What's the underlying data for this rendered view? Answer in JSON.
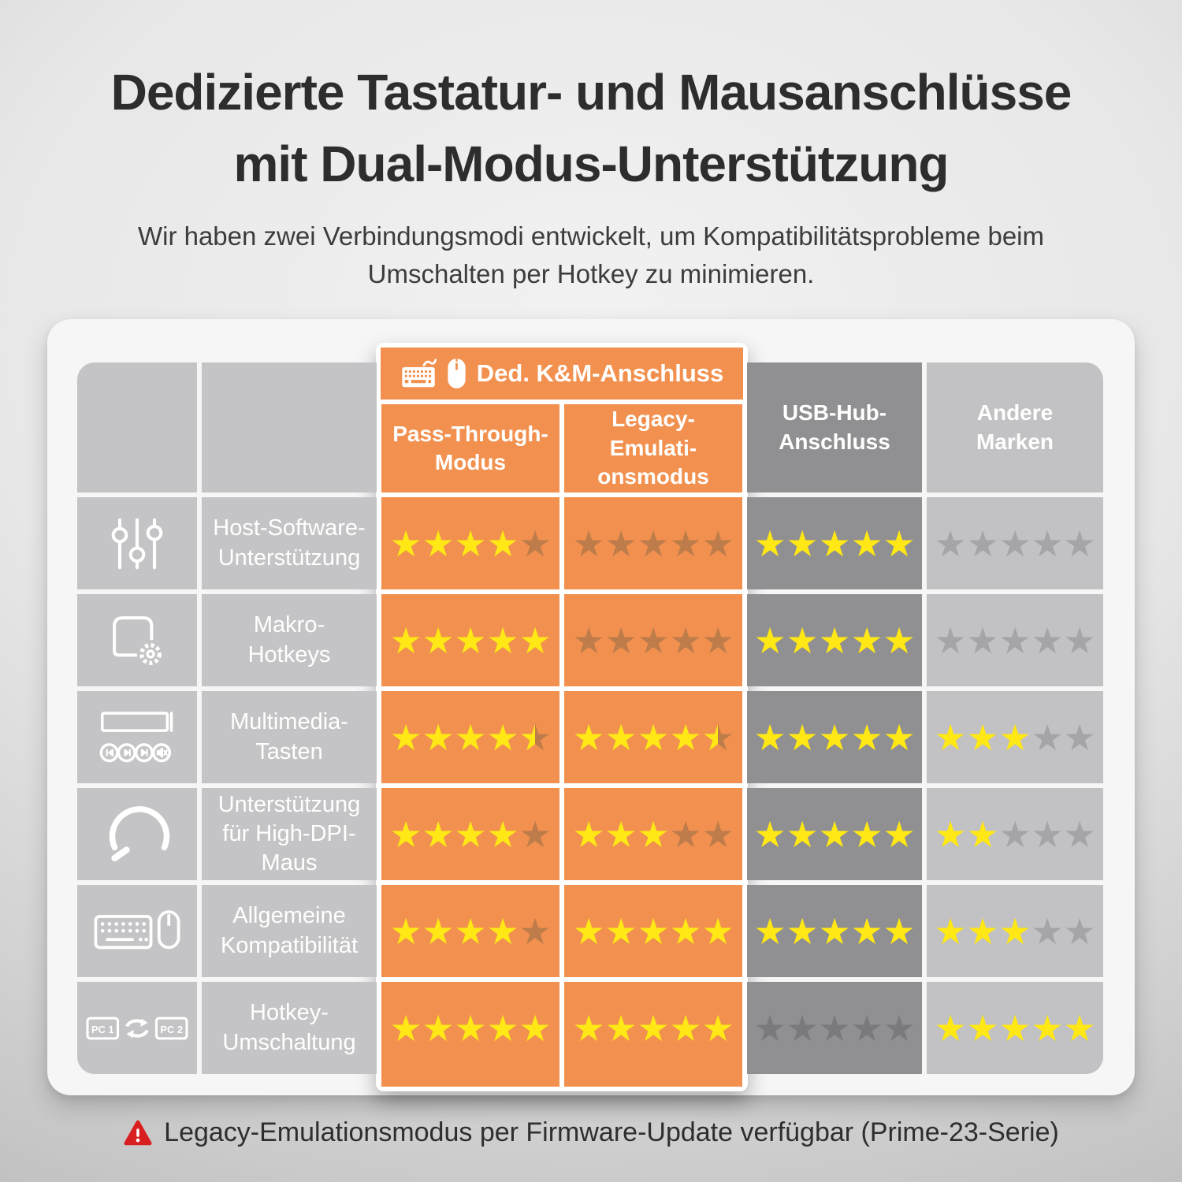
{
  "header": {
    "title_line1": "Dedizierte Tastatur- und Mausanschlüsse",
    "title_line2": "mit Dual-Modus-Unterstützung",
    "subtitle": "Wir haben zwei Verbindungsmodi entwickelt, um Kompatibilitätsprobleme beim\nUmschalten per Hotkey zu minimieren."
  },
  "table": {
    "group_header": {
      "label": "Ded. K&M-Anschluss",
      "icons": [
        "keyboard-icon",
        "mouse-icon"
      ]
    },
    "columns": [
      {
        "id": "pass_through",
        "label": "Pass-Through-\nModus",
        "theme": "orange"
      },
      {
        "id": "legacy",
        "label": "Legacy-\nEmulati-\nonsmodus",
        "theme": "orange"
      },
      {
        "id": "usb_hub",
        "label": "USB-Hub-\nAnschluss",
        "theme": "dark"
      },
      {
        "id": "other",
        "label": "Andere\nMarken",
        "theme": "light"
      }
    ],
    "rows": [
      {
        "icon": "sliders-icon",
        "label": "Host-Software-\nUnterstützung",
        "ratings": {
          "pass_through": 4,
          "legacy": 0,
          "usb_hub": 5,
          "other": 0
        }
      },
      {
        "icon": "macro-keys-icon",
        "label": "Makro-\nHotkeys",
        "ratings": {
          "pass_through": 5,
          "legacy": 0,
          "usb_hub": 5,
          "other": 0
        }
      },
      {
        "icon": "multimedia-keys-icon",
        "label": "Multimedia-\nTasten",
        "ratings": {
          "pass_through": 4.5,
          "legacy": 4.5,
          "usb_hub": 5,
          "other": 3
        }
      },
      {
        "icon": "dpi-gauge-icon",
        "label": "Unterstützung\nfür High-DPI-\nMaus",
        "ratings": {
          "pass_through": 4,
          "legacy": 3,
          "usb_hub": 5,
          "other": 2
        }
      },
      {
        "icon": "keyboard-mouse-icon",
        "label": "Allgemeine\nKompatibilität",
        "ratings": {
          "pass_through": 4,
          "legacy": 5,
          "usb_hub": 5,
          "other": 3
        }
      },
      {
        "icon": "pc-switch-icon",
        "label": "Hotkey-\nUmschaltung",
        "ratings": {
          "pass_through": 5,
          "legacy": 5,
          "usb_hub": 0,
          "other": 5
        }
      }
    ],
    "rating_scale_max": 5
  },
  "footnote": {
    "text": "Legacy-Emulationsmodus per Firmware-Update verfügbar (Prime-23-Serie)"
  },
  "colors": {
    "accent_orange": "#F2914F",
    "star_yellow": "#FFE815",
    "star_empty_on_orange": "#BE7C4B",
    "star_empty_on_dark": "#7A7A7D",
    "star_empty_on_light": "#A5A5A7",
    "cell_gray": "#C4C4C6",
    "column_dark_gray": "#909092",
    "column_light_gray": "#C2C2C4",
    "warning_red": "#D81E1E",
    "title_color": "#2D2D2D"
  }
}
